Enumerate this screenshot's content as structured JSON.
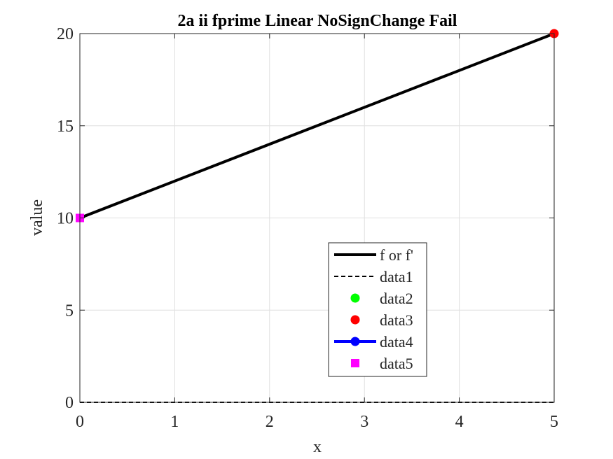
{
  "chart_data": {
    "type": "line",
    "title": "2a ii fprime Linear NoSignChange Fail",
    "xlabel": "x",
    "ylabel": "value",
    "xlim": [
      0,
      5
    ],
    "ylim": [
      0,
      20
    ],
    "xticks": [
      0,
      1,
      2,
      3,
      4,
      5
    ],
    "yticks": [
      0,
      5,
      10,
      15,
      20
    ],
    "x_tick_labels": [
      "0",
      "1",
      "2",
      "3",
      "4",
      "5"
    ],
    "y_tick_labels": [
      "0",
      "5",
      "10",
      "15",
      "20"
    ],
    "grid": true,
    "legend_location": "bottom-center",
    "series": [
      {
        "name": "f or f'",
        "style": "solid-line",
        "color": "#000000",
        "x": [
          0,
          5
        ],
        "y": [
          10,
          20
        ]
      },
      {
        "name": "data1",
        "style": "dashed-line",
        "color": "#000000",
        "x": [
          0,
          5
        ],
        "y": [
          0,
          0
        ]
      },
      {
        "name": "data2",
        "style": "circle-marker",
        "color": "#00ff00",
        "x": [],
        "y": []
      },
      {
        "name": "data3",
        "style": "circle-marker",
        "color": "#ff0000",
        "x": [
          5
        ],
        "y": [
          20
        ]
      },
      {
        "name": "data4",
        "style": "line-circle-marker",
        "color": "#0000ff",
        "x": [],
        "y": []
      },
      {
        "name": "data5",
        "style": "square-marker",
        "color": "#ff00ff",
        "x": [
          0
        ],
        "y": [
          10
        ]
      }
    ]
  }
}
